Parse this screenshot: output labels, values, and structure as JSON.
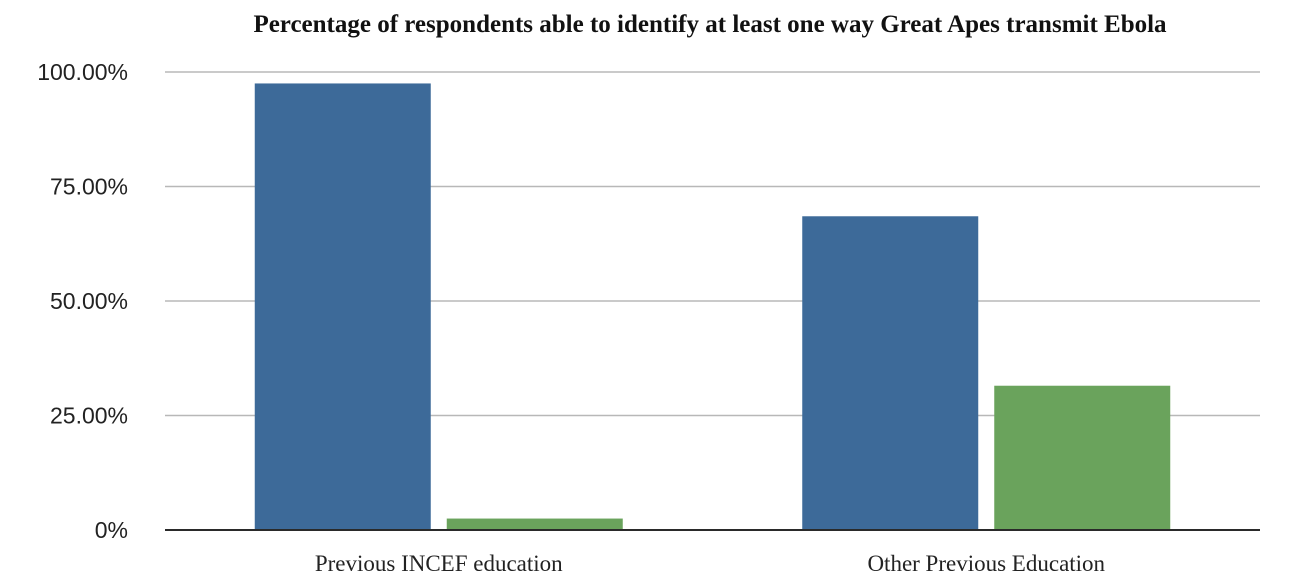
{
  "chart_data": {
    "type": "bar",
    "title": "Percentage of respondents able to identify at least one way Great Apes transmit Ebola",
    "xlabel": "",
    "ylabel": "",
    "categories": [
      "Previous INCEF education",
      "Other Previous Education"
    ],
    "series": [
      {
        "values": [
          97.5,
          68.5
        ],
        "color": "#3d6a99"
      },
      {
        "values": [
          2.5,
          31.5
        ],
        "color": "#6aa35c"
      }
    ],
    "ylim": [
      0,
      100
    ],
    "yticks": [
      0,
      25,
      50,
      75,
      100
    ],
    "ytick_labels": [
      "0%",
      "25.00%",
      "50.00%",
      "75.00%",
      "100.00%"
    ],
    "grid": true,
    "legend": "none"
  }
}
